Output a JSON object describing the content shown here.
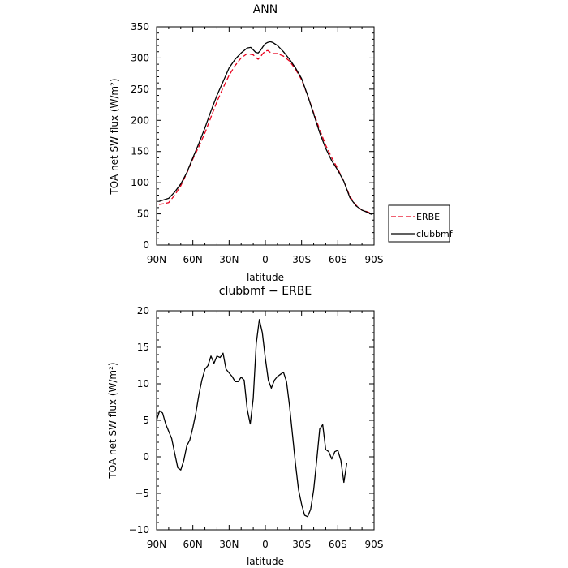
{
  "chart_data": [
    {
      "type": "line",
      "title": "ANN",
      "xlabel": "latitude",
      "ylabel": "TOA net SW flux (W/m²)",
      "xlim": [
        90,
        -90
      ],
      "ylim": [
        0,
        350
      ],
      "x_ticks": [
        90,
        60,
        30,
        0,
        -30,
        -60,
        -90
      ],
      "x_tick_labels": [
        "90N",
        "60N",
        "30N",
        "0",
        "30S",
        "60S",
        "90S"
      ],
      "y_ticks": [
        0,
        50,
        100,
        150,
        200,
        250,
        300,
        350
      ],
      "y_tick_labels": [
        "0",
        "50",
        "100",
        "150",
        "200",
        "250",
        "300",
        "350"
      ],
      "legend_position": "outside-right",
      "series": [
        {
          "name": "ERBE",
          "color": "#e8001c",
          "style": "dashed",
          "points": [
            [
              88,
              65
            ],
            [
              85,
              66
            ],
            [
              80,
              68
            ],
            [
              75,
              80
            ],
            [
              70,
              95
            ],
            [
              65,
              115
            ],
            [
              60,
              138
            ],
            [
              55,
              158
            ],
            [
              50,
              180
            ],
            [
              45,
              205
            ],
            [
              40,
              230
            ],
            [
              35,
              252
            ],
            [
              30,
              272
            ],
            [
              25,
              288
            ],
            [
              20,
              300
            ],
            [
              15,
              307
            ],
            [
              10,
              305
            ],
            [
              8,
              301
            ],
            [
              6,
              298
            ],
            [
              4,
              302
            ],
            [
              2,
              307
            ],
            [
              0,
              311
            ],
            [
              -2,
              312
            ],
            [
              -4,
              309
            ],
            [
              -6,
              307
            ],
            [
              -10,
              307
            ],
            [
              -15,
              303
            ],
            [
              -20,
              295
            ],
            [
              -25,
              282
            ],
            [
              -30,
              265
            ],
            [
              -35,
              240
            ],
            [
              -40,
              212
            ],
            [
              -45,
              185
            ],
            [
              -50,
              160
            ],
            [
              -55,
              140
            ],
            [
              -60,
              122
            ],
            [
              -65,
              102
            ],
            [
              -70,
              78
            ],
            [
              -75,
              64
            ],
            [
              -80,
              56
            ],
            [
              -85,
              53
            ],
            [
              -88,
              50
            ]
          ]
        },
        {
          "name": "clubbmf",
          "color": "#000000",
          "style": "solid",
          "points": [
            [
              88,
              70
            ],
            [
              85,
              72
            ],
            [
              80,
              75
            ],
            [
              75,
              85
            ],
            [
              70,
              98
            ],
            [
              65,
              116
            ],
            [
              60,
              140
            ],
            [
              55,
              163
            ],
            [
              50,
              188
            ],
            [
              45,
              215
            ],
            [
              40,
              240
            ],
            [
              35,
              262
            ],
            [
              30,
              284
            ],
            [
              25,
              298
            ],
            [
              20,
              308
            ],
            [
              15,
              316
            ],
            [
              12,
              317
            ],
            [
              10,
              313
            ],
            [
              8,
              309
            ],
            [
              6,
              308
            ],
            [
              4,
              312
            ],
            [
              2,
              318
            ],
            [
              0,
              323
            ],
            [
              -2,
              325
            ],
            [
              -4,
              326
            ],
            [
              -6,
              325
            ],
            [
              -10,
              320
            ],
            [
              -15,
              310
            ],
            [
              -20,
              298
            ],
            [
              -25,
              284
            ],
            [
              -30,
              267
            ],
            [
              -35,
              240
            ],
            [
              -40,
              210
            ],
            [
              -45,
              180
            ],
            [
              -50,
              155
            ],
            [
              -55,
              135
            ],
            [
              -60,
              120
            ],
            [
              -65,
              102
            ],
            [
              -70,
              76
            ],
            [
              -75,
              63
            ],
            [
              -80,
              56
            ],
            [
              -85,
              52
            ],
            [
              -88,
              49
            ]
          ]
        }
      ]
    },
    {
      "type": "line",
      "title": "clubbmf − ERBE",
      "xlabel": "latitude",
      "ylabel": "TOA net SW flux (W/m²)",
      "xlim": [
        90,
        -90
      ],
      "ylim": [
        -10,
        20
      ],
      "x_ticks": [
        90,
        60,
        30,
        0,
        -30,
        -60,
        -90
      ],
      "x_tick_labels": [
        "90N",
        "60N",
        "30N",
        "0",
        "30S",
        "60S",
        "90S"
      ],
      "y_ticks": [
        -10,
        -5,
        0,
        5,
        10,
        15,
        20
      ],
      "y_tick_labels": [
        "−10",
        "−5",
        "0",
        "5",
        "10",
        "15",
        "20"
      ],
      "series": [
        {
          "color": "#000000",
          "style": "solid",
          "points": [
            [
              90,
              5
            ],
            [
              87.5,
              6.3
            ],
            [
              85,
              6
            ],
            [
              82.5,
              4.5
            ],
            [
              80,
              3.5
            ],
            [
              77.5,
              2.5
            ],
            [
              75,
              0.5
            ],
            [
              72.5,
              -1.5
            ],
            [
              70,
              -1.8
            ],
            [
              67.5,
              -0.5
            ],
            [
              65,
              1.5
            ],
            [
              62.5,
              2.3
            ],
            [
              60,
              4
            ],
            [
              57.5,
              6
            ],
            [
              55,
              8.5
            ],
            [
              52.5,
              10.5
            ],
            [
              50,
              12
            ],
            [
              47.5,
              12.5
            ],
            [
              45,
              13.8
            ],
            [
              42.5,
              12.8
            ],
            [
              40,
              13.8
            ],
            [
              37.5,
              13.6
            ],
            [
              35,
              14.2
            ],
            [
              32.5,
              12
            ],
            [
              30,
              11.5
            ],
            [
              27.5,
              11
            ],
            [
              25,
              10.3
            ],
            [
              22.5,
              10.3
            ],
            [
              20,
              10.9
            ],
            [
              17.5,
              10.5
            ],
            [
              15,
              6.5
            ],
            [
              12.5,
              4.5
            ],
            [
              10,
              8
            ],
            [
              7.5,
              15.5
            ],
            [
              5,
              18.8
            ],
            [
              2.5,
              17
            ],
            [
              0,
              13.5
            ],
            [
              -2.5,
              10.5
            ],
            [
              -5,
              9.4
            ],
            [
              -7.5,
              10.5
            ],
            [
              -10,
              11
            ],
            [
              -12.5,
              11.3
            ],
            [
              -15,
              11.6
            ],
            [
              -17.5,
              10.3
            ],
            [
              -20,
              7
            ],
            [
              -22.5,
              3
            ],
            [
              -25,
              -1
            ],
            [
              -27.5,
              -4.5
            ],
            [
              -30,
              -6.5
            ],
            [
              -32.5,
              -8
            ],
            [
              -35,
              -8.2
            ],
            [
              -37.5,
              -7.2
            ],
            [
              -40,
              -4.5
            ],
            [
              -42.5,
              -0.5
            ],
            [
              -45,
              3.8
            ],
            [
              -47.5,
              4.4
            ],
            [
              -50,
              1
            ],
            [
              -52.5,
              0.7
            ],
            [
              -55,
              -0.3
            ],
            [
              -57.5,
              0.7
            ],
            [
              -60,
              0.9
            ],
            [
              -62.5,
              -0.5
            ],
            [
              -65,
              -3.5
            ],
            [
              -67.5,
              -0.8
            ]
          ]
        }
      ]
    }
  ]
}
